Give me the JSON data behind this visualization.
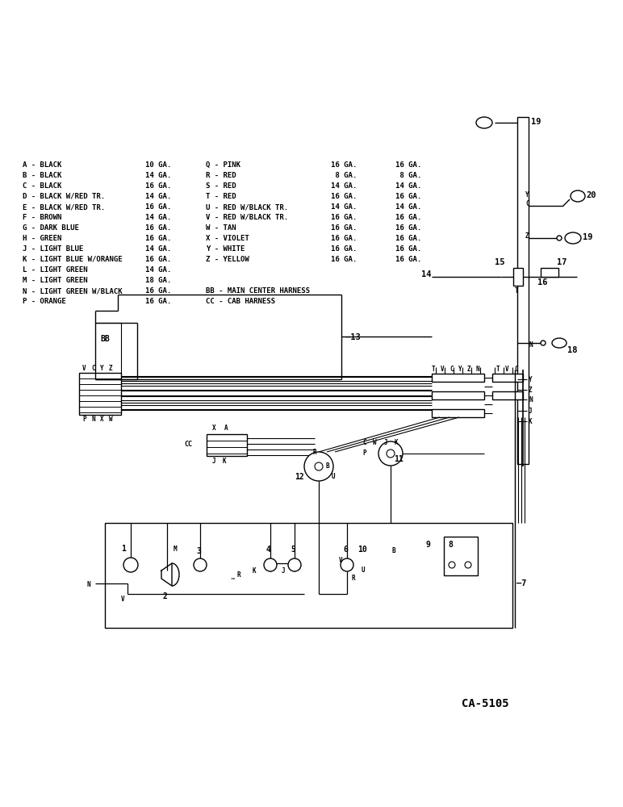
{
  "bg_color": "#ffffff",
  "fig_width": 7.72,
  "fig_height": 10.0,
  "legend_left": [
    [
      "A - BLACK",
      "10 GA."
    ],
    [
      "B - BLACK",
      "14 GA."
    ],
    [
      "C - BLACK",
      "16 GA."
    ],
    [
      "D - BLACK W/RED TR.",
      "14 GA."
    ],
    [
      "E - BLACK W/RED TR.",
      "16 GA."
    ],
    [
      "F - BROWN",
      "14 GA."
    ],
    [
      "G - DARK BLUE",
      "16 GA."
    ],
    [
      "H - GREEN",
      "16 GA."
    ],
    [
      "J - LIGHT BLUE",
      "14 GA."
    ],
    [
      "K - LIGHT BLUE W/ORANGE",
      "16 GA."
    ],
    [
      "L - LIGHT GREEN",
      "14 GA."
    ],
    [
      "M - LIGHT GREEN",
      "18 GA."
    ],
    [
      "N - LIGHT GREEN W/BLACK",
      "16 GA."
    ],
    [
      "P - ORANGE",
      "16 GA."
    ]
  ],
  "legend_mid": [
    [
      "Q - PINK",
      "16 GA."
    ],
    [
      "R - RED",
      " 8 GA."
    ],
    [
      "S - RED",
      "14 GA."
    ],
    [
      "T - RED",
      "16 GA."
    ],
    [
      "U - RED W/BLACK TR.",
      "14 GA."
    ],
    [
      "V - RED W/BLACK TR.",
      "16 GA."
    ],
    [
      "W - TAN",
      "16 GA."
    ],
    [
      "X - VIOLET",
      "16 GA."
    ],
    [
      "Y - WHITE",
      "16 GA."
    ],
    [
      "Z - YELLOW",
      "16 GA."
    ]
  ],
  "legend_mid2": [
    [
      "BB - MAIN CENTER HARNESS",
      ""
    ],
    [
      "CC - CAB HARNESS",
      ""
    ]
  ],
  "legend_right_ga": [
    "16 GA.",
    " 8 GA.",
    "14 GA.",
    "16 GA.",
    "14 GA.",
    "16 GA.",
    "16 GA.",
    "16 GA.",
    "16 GA.",
    "16 GA."
  ],
  "diagram_caption": "CA-5105"
}
